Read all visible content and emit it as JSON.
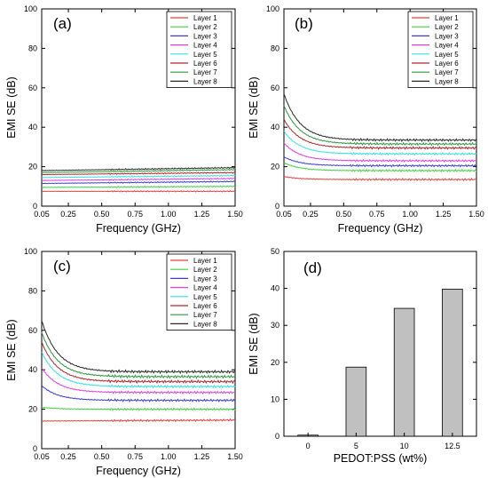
{
  "chart_data": [
    {
      "panel": "(a)",
      "type": "line",
      "xlabel": "Frequency (GHz)",
      "ylabel": "EMI SE (dB)",
      "xlim": [
        0.05,
        1.5
      ],
      "ylim": [
        0,
        100
      ],
      "xticks": [
        "0.05",
        "0.25",
        "0.50",
        "0.75",
        "1.00",
        "1.25",
        "1.50"
      ],
      "yticks": [
        "0",
        "20",
        "40",
        "60",
        "80",
        "100"
      ],
      "legend_position": "top-right",
      "series": [
        {
          "name": "Layer 1",
          "color": "#e8403a",
          "start": 7.5,
          "end": 7.5,
          "noise": 0.3
        },
        {
          "name": "Layer 2",
          "color": "#3fd23f",
          "start": 9.5,
          "end": 10.0,
          "noise": 0.3
        },
        {
          "name": "Layer 3",
          "color": "#3b3bd6",
          "start": 11.5,
          "end": 12.5,
          "noise": 0.3
        },
        {
          "name": "Layer 4",
          "color": "#e23fe2",
          "start": 13.0,
          "end": 14.0,
          "noise": 0.3
        },
        {
          "name": "Layer 5",
          "color": "#35e0e6",
          "start": 14.5,
          "end": 15.5,
          "noise": 0.3
        },
        {
          "name": "Layer 6",
          "color": "#b3262b",
          "start": 16.0,
          "end": 17.0,
          "noise": 0.3
        },
        {
          "name": "Layer 7",
          "color": "#2f9a3e",
          "start": 17.0,
          "end": 18.5,
          "noise": 0.3
        },
        {
          "name": "Layer 8",
          "color": "#2b2b2b",
          "start": 18.0,
          "end": 19.5,
          "noise": 0.35
        }
      ]
    },
    {
      "panel": "(b)",
      "type": "line",
      "xlabel": "Frequency (GHz)",
      "ylabel": "EMI SE (dB)",
      "xlim": [
        0.05,
        1.5
      ],
      "ylim": [
        0,
        100
      ],
      "xticks": [
        "0.05",
        "0.25",
        "0.50",
        "0.75",
        "1.00",
        "1.25",
        "1.50"
      ],
      "yticks": [
        "0",
        "20",
        "40",
        "60",
        "80",
        "100"
      ],
      "legend_position": "top-right",
      "series": [
        {
          "name": "Layer 1",
          "color": "#e8403a",
          "start": 15.0,
          "end": 13.5,
          "noise": 0.5
        },
        {
          "name": "Layer 2",
          "color": "#3fd23f",
          "start": 22.0,
          "end": 18.0,
          "noise": 0.5
        },
        {
          "name": "Layer 3",
          "color": "#3b3bd6",
          "start": 25.0,
          "end": 20.5,
          "noise": 0.5
        },
        {
          "name": "Layer 4",
          "color": "#e23fe2",
          "start": 32.0,
          "end": 23.0,
          "noise": 0.5
        },
        {
          "name": "Layer 5",
          "color": "#35e0e6",
          "start": 38.0,
          "end": 26.5,
          "noise": 0.5
        },
        {
          "name": "Layer 6",
          "color": "#b3262b",
          "start": 44.0,
          "end": 29.5,
          "noise": 0.6
        },
        {
          "name": "Layer 7",
          "color": "#2f9a3e",
          "start": 51.0,
          "end": 31.5,
          "noise": 0.6
        },
        {
          "name": "Layer 8",
          "color": "#2b2b2b",
          "start": 57.0,
          "end": 33.5,
          "noise": 0.6
        }
      ]
    },
    {
      "panel": "(c)",
      "type": "line",
      "xlabel": "Frequency (GHz)",
      "ylabel": "EMI SE (dB)",
      "xlim": [
        0.05,
        1.5
      ],
      "ylim": [
        0,
        100
      ],
      "xticks": [
        "0.05",
        "0.25",
        "0.50",
        "0.75",
        "1.00",
        "1.25",
        "1.50"
      ],
      "yticks": [
        "0",
        "20",
        "40",
        "60",
        "80",
        "100"
      ],
      "legend_position": "top-right",
      "series": [
        {
          "name": "Layer 1",
          "color": "#e8403a",
          "start": 14.0,
          "end": 14.5,
          "noise": 0.5
        },
        {
          "name": "Layer 2",
          "color": "#3fd23f",
          "start": 21.0,
          "end": 20.0,
          "noise": 0.5
        },
        {
          "name": "Layer 3",
          "color": "#3b3bd6",
          "start": 32.0,
          "end": 24.5,
          "noise": 0.6
        },
        {
          "name": "Layer 4",
          "color": "#e23fe2",
          "start": 41.0,
          "end": 28.5,
          "noise": 0.6
        },
        {
          "name": "Layer 5",
          "color": "#35e0e6",
          "start": 49.0,
          "end": 31.5,
          "noise": 0.6
        },
        {
          "name": "Layer 6",
          "color": "#b3262b",
          "start": 54.0,
          "end": 34.0,
          "noise": 0.7
        },
        {
          "name": "Layer 7",
          "color": "#2f9a3e",
          "start": 59.0,
          "end": 36.5,
          "noise": 0.7
        },
        {
          "name": "Layer 8",
          "color": "#2b2b2b",
          "start": 65.0,
          "end": 39.0,
          "noise": 0.7
        }
      ]
    },
    {
      "panel": "(d)",
      "type": "bar",
      "xlabel": "PEDOT:PSS (wt%)",
      "ylabel": "EMI SE (dB)",
      "categories": [
        "0",
        "5",
        "10",
        "12.5"
      ],
      "values": [
        0.3,
        18.7,
        34.6,
        39.8
      ],
      "ylim": [
        0,
        50
      ],
      "yticks": [
        "0",
        "10",
        "20",
        "30",
        "40",
        "50"
      ],
      "bar_color": "#c0c0c0"
    }
  ]
}
